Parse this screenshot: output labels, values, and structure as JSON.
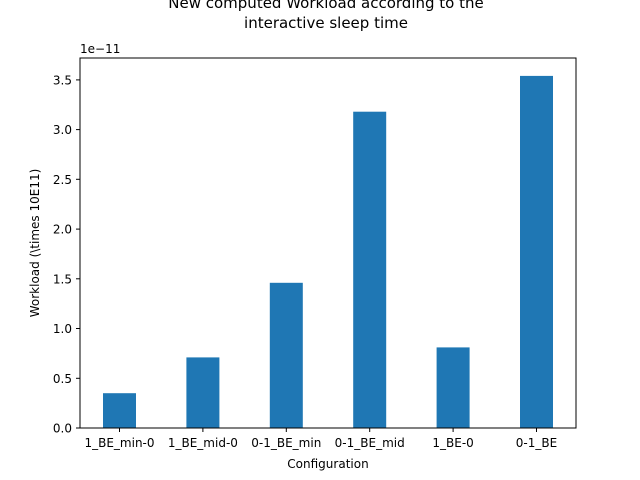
{
  "chart_data": {
    "type": "bar",
    "title_lines": [
      "New computed Workload according to the",
      "interactive sleep time"
    ],
    "xlabel": "Configuration",
    "ylabel": "Workload (\\times 10E11)",
    "offset_text": "1e−11",
    "categories": [
      "1_BE_min-0",
      "1_BE_mid-0",
      "0-1_BE_min",
      "0-1_BE_mid",
      "1_BE-0",
      "0-1_BE"
    ],
    "values": [
      0.35,
      0.71,
      1.46,
      3.18,
      0.81,
      3.54
    ],
    "ylim": [
      0,
      3.72
    ],
    "yticks": [
      0.0,
      0.5,
      1.0,
      1.5,
      2.0,
      2.5,
      3.0,
      3.5
    ],
    "ytick_labels": [
      "0.0",
      "0.5",
      "1.0",
      "1.5",
      "2.0",
      "2.5",
      "3.0",
      "3.5"
    ],
    "bar_color": "#1f77b4",
    "grid": false,
    "legend": "none"
  }
}
